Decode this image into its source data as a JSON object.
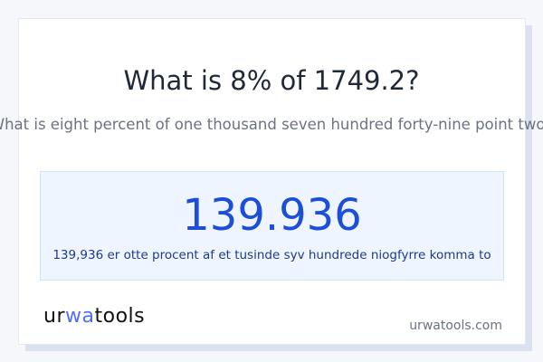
{
  "title": "What is 8% of 1749.2?",
  "subtitle": "What is eight percent of one thousand seven hundred forty-nine point two?",
  "result": {
    "value": "139.936",
    "words": "139,936 er otte procent af et tusinde syv hundrede niogfyrre komma to"
  },
  "logo": {
    "text": "urwatools",
    "part1": "ur",
    "part2": "wa",
    "part3": "tools"
  },
  "site": "urwatools.com",
  "colors": {
    "accent": "#1d4ed8",
    "result_bg": "#eef5ff",
    "logo_accent": "#4f6ef7"
  }
}
